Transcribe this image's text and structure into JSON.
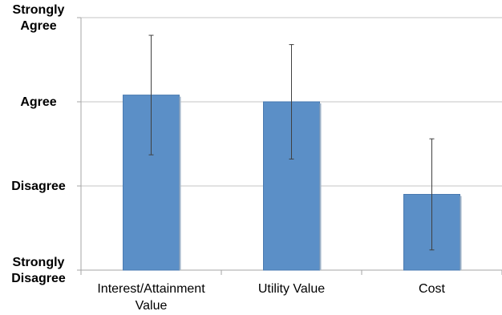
{
  "chart_data": {
    "type": "bar",
    "title": "",
    "xlabel": "",
    "ylabel": "",
    "y_ticks": [
      {
        "value": 1,
        "lines": [
          "Strongly",
          "Disagree"
        ]
      },
      {
        "value": 2,
        "lines": [
          "Disagree"
        ]
      },
      {
        "value": 3,
        "lines": [
          "Agree"
        ]
      },
      {
        "value": 4,
        "lines": [
          "Strongly",
          "Agree"
        ]
      }
    ],
    "ylim": [
      1,
      4
    ],
    "grid": true,
    "legend": "none",
    "categories": [
      [
        "Interest/Attainment",
        "Value"
      ],
      [
        "Utility Value"
      ],
      [
        "Cost"
      ]
    ],
    "series": [
      {
        "values": [
          3.08,
          3.0,
          1.9
        ],
        "error_low": [
          2.37,
          2.32,
          1.24
        ],
        "error_high": [
          3.79,
          3.68,
          2.56
        ],
        "color": "#5B8FC7"
      }
    ]
  }
}
